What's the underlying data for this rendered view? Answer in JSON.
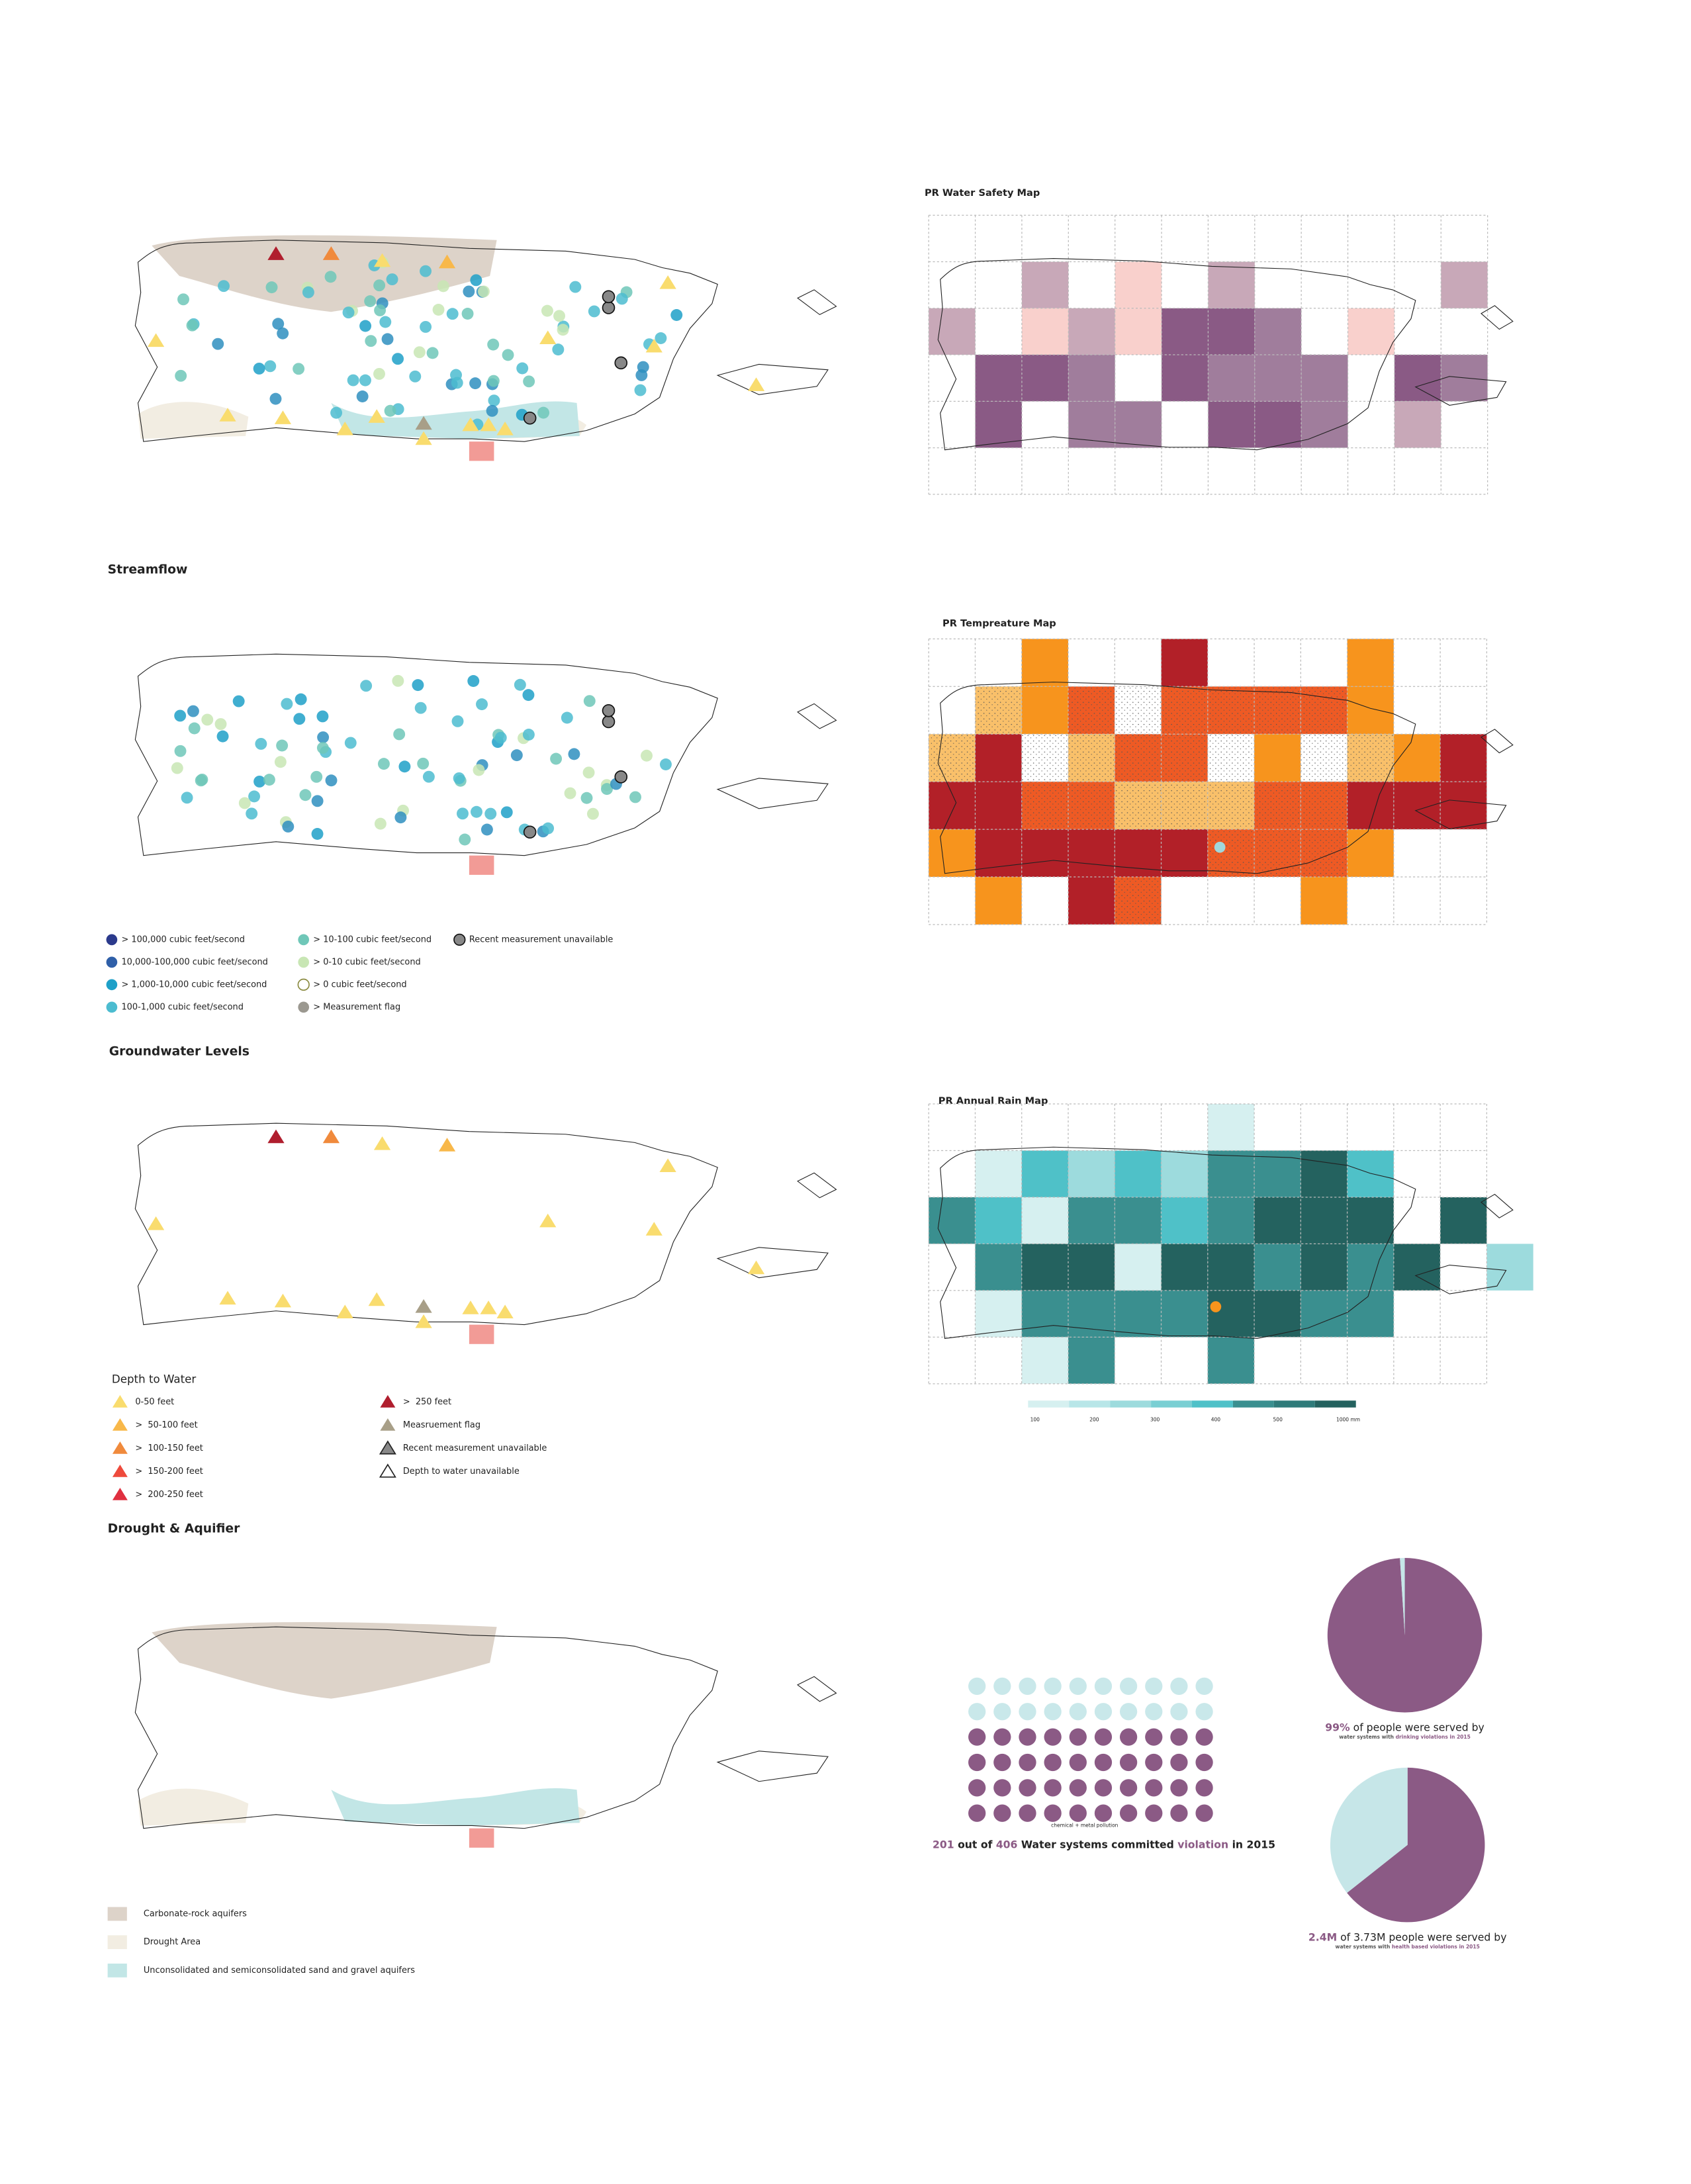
{
  "streamflow": {
    "title": "Streamflow",
    "legend": [
      "> 100,000 cubic feet/second",
      "10,000-100,000 cubic feet/second",
      "> 1,000-10,000 cubic feet/second",
      "100-1,000 cubic feet/second",
      "> 10-100 cubic feet/second",
      "> 0-10 cubic feet/second",
      "> 0 cubic feet/second",
      "> Measurement flag",
      "Recent measurement unavailable"
    ]
  },
  "groundwater": {
    "title": "Groundwater Levels",
    "legend_title": "Depth to Water",
    "legend": [
      "0-50 feet",
      ">  50-100 feet",
      ">  100-150 feet",
      ">  150-200 feet",
      ">  200-250 feet",
      ">  250 feet",
      "Measruement flag",
      "Recent measurement unavailable",
      "Depth to water unavailable"
    ]
  },
  "drought": {
    "title": "Drought & Aquifier",
    "legend": [
      "Carbonate-rock aquifers",
      "Drought Area",
      "Unconsolidated and semiconsolidated sand and gravel aquifers"
    ]
  },
  "water_safety_map": {
    "title": "PR Water Safety Map"
  },
  "temperature_map": {
    "title": "PR Tempreature Map"
  },
  "rain_map": {
    "title": "PR Annual Rain Map",
    "legend_labels": [
      "100",
      "200",
      "300",
      "400",
      "500",
      "1000 mm"
    ]
  },
  "violations": {
    "note": "chemical + metal pollution",
    "summary": [
      "201",
      " out of ",
      "406",
      " Water systems committed ",
      "violation",
      " in 2015"
    ]
  },
  "chart_data": [
    {
      "type": "pie",
      "values": [
        99,
        1
      ],
      "colors": [
        "#8b5a85",
        "#c6e6e8"
      ],
      "caption": [
        "99%",
        " of people were served by"
      ],
      "subcaption": [
        "water systems with ",
        "drinking violations in 2015"
      ]
    },
    {
      "type": "pie",
      "values": [
        2.4,
        1.33
      ],
      "colors": [
        "#8b5a85",
        "#c6e6e8"
      ],
      "caption": [
        "2.4M",
        " of 3.73M people were served by"
      ],
      "subcaption": [
        "water systems with ",
        "health based violations in 2015"
      ]
    }
  ]
}
